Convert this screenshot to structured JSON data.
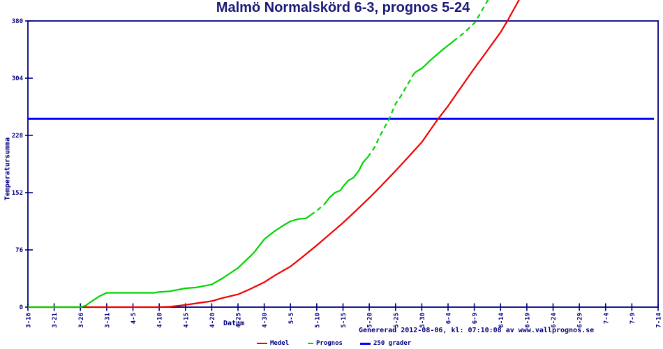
{
  "title": "Malmö Normalskörd 6-3, prognos 5-24",
  "footer": "Genererad 2012-08-06, kl: 07:10:08 av www.vallprognos.se",
  "colors": {
    "frame_and_text": "#000080",
    "title_text": "#1a1a78",
    "medel_line": "#ee0000",
    "prognos_line": "#00d400",
    "threshold_line": "#0000ff",
    "background": "#ffffff"
  },
  "chart_data": {
    "type": "line",
    "title": "Malmö Normalskörd 6-3, prognos 5-24",
    "xlabel": "Datum",
    "ylabel": "Temperatursumma",
    "x_unit": "days since 3-16",
    "xlim_days": [
      0,
      120
    ],
    "ylim": [
      0,
      380
    ],
    "y_ticks": [
      0,
      76,
      152,
      228,
      304,
      380
    ],
    "x_tick_days": [
      0,
      5,
      10,
      15,
      20,
      25,
      30,
      35,
      40,
      45,
      50,
      55,
      60,
      65,
      70,
      75,
      80,
      85,
      90,
      95,
      100,
      105,
      110,
      115,
      120
    ],
    "x_tick_labels": [
      "3-16",
      "3-21",
      "3-26",
      "3-31",
      "4-5",
      "4-10",
      "4-15",
      "4-20",
      "4-25",
      "4-30",
      "5-5",
      "5-10",
      "5-15",
      "5-20",
      "5-25",
      "5-30",
      "6-4",
      "6-9",
      "6-14",
      "6-19",
      "6-24",
      "6-29",
      "7-4",
      "7-9",
      "7-14"
    ],
    "grid": false,
    "legend_position": "bottom-center",
    "legend": [
      {
        "label": "Medel",
        "color": "#ee0000",
        "style": "solid"
      },
      {
        "label": "Prognos",
        "color": "#00d400",
        "style": "dashed"
      },
      {
        "label": "250 grader",
        "color": "#0000ff",
        "style": "solid"
      }
    ],
    "series": [
      {
        "name": "250 grader",
        "color": "#0000ff",
        "width": 3,
        "segments": [
          {
            "style": "solid",
            "points": [
              [
                0,
                250
              ],
              [
                119.2,
                250
              ]
            ]
          }
        ]
      },
      {
        "name": "Medel",
        "color": "#ee0000",
        "width": 2.2,
        "segments": [
          {
            "style": "solid",
            "points": [
              [
                0,
                0
              ],
              [
                10,
                0
              ],
              [
                20,
                0
              ],
              [
                25,
                0
              ],
              [
                27,
                0.5
              ],
              [
                30,
                3
              ],
              [
                32,
                5
              ],
              [
                35,
                8
              ],
              [
                37,
                12
              ],
              [
                40,
                17
              ],
              [
                42,
                23
              ],
              [
                45,
                33
              ],
              [
                47,
                42
              ],
              [
                50,
                54
              ],
              [
                52,
                65
              ],
              [
                55,
                82
              ],
              [
                57,
                94
              ],
              [
                60,
                112
              ],
              [
                62,
                125
              ],
              [
                65,
                145
              ],
              [
                67,
                159
              ],
              [
                70,
                181
              ],
              [
                72,
                196
              ],
              [
                75,
                219
              ],
              [
                78,
                249
              ],
              [
                80,
                267
              ],
              [
                82,
                287
              ],
              [
                85,
                317
              ],
              [
                87,
                336
              ],
              [
                90,
                365
              ],
              [
                91.3,
                380
              ],
              [
                93.6,
                409
              ]
            ]
          }
        ]
      },
      {
        "name": "Prognos",
        "color": "#00d400",
        "width": 2.2,
        "segments": [
          {
            "style": "solid",
            "points": [
              [
                0,
                0
              ],
              [
                10,
                0
              ],
              [
                11,
                2
              ],
              [
                12,
                7
              ],
              [
                13.5,
                14
              ],
              [
                15,
                19
              ],
              [
                20,
                19
              ],
              [
                24,
                19
              ],
              [
                25,
                20
              ],
              [
                27,
                21
              ],
              [
                30,
                25
              ],
              [
                32,
                26
              ],
              [
                35,
                30
              ],
              [
                37,
                38
              ],
              [
                40,
                52
              ],
              [
                43,
                72
              ],
              [
                45,
                90
              ],
              [
                47,
                101
              ],
              [
                49,
                110
              ],
              [
                50,
                114
              ],
              [
                51.5,
                117
              ],
              [
                53,
                118
              ],
              [
                53.8,
                122
              ]
            ]
          },
          {
            "style": "dashed",
            "points": [
              [
                53.8,
                122
              ],
              [
                55,
                128
              ],
              [
                56.5,
                137
              ]
            ]
          },
          {
            "style": "solid",
            "points": [
              [
                56.5,
                137
              ],
              [
                57.5,
                146
              ],
              [
                58.5,
                152
              ],
              [
                59.5,
                155
              ],
              [
                60,
                160
              ],
              [
                61,
                168
              ],
              [
                62,
                172
              ],
              [
                63,
                181
              ],
              [
                63.8,
                192
              ],
              [
                64.7,
                199
              ]
            ]
          },
          {
            "style": "dashed",
            "points": [
              [
                64.7,
                199
              ],
              [
                65,
                202
              ],
              [
                66,
                212
              ],
              [
                67,
                227
              ],
              [
                68.8,
                250
              ],
              [
                70,
                270
              ],
              [
                71,
                280
              ],
              [
                72,
                292
              ],
              [
                73.5,
                310
              ]
            ]
          },
          {
            "style": "solid",
            "points": [
              [
                73.5,
                310
              ],
              [
                74,
                313
              ],
              [
                75,
                317
              ],
              [
                77,
                330
              ],
              [
                79,
                342
              ],
              [
                81,
                353
              ]
            ]
          },
          {
            "style": "dashed",
            "points": [
              [
                81,
                353
              ],
              [
                83,
                364
              ],
              [
                85,
                377
              ],
              [
                85.3,
                380
              ],
              [
                87.7,
                409
              ]
            ]
          }
        ]
      }
    ],
    "annotations": {
      "threshold_value": 250,
      "medel_reaches_threshold": "6-3",
      "prognos_reaches_threshold": "5-24"
    }
  }
}
